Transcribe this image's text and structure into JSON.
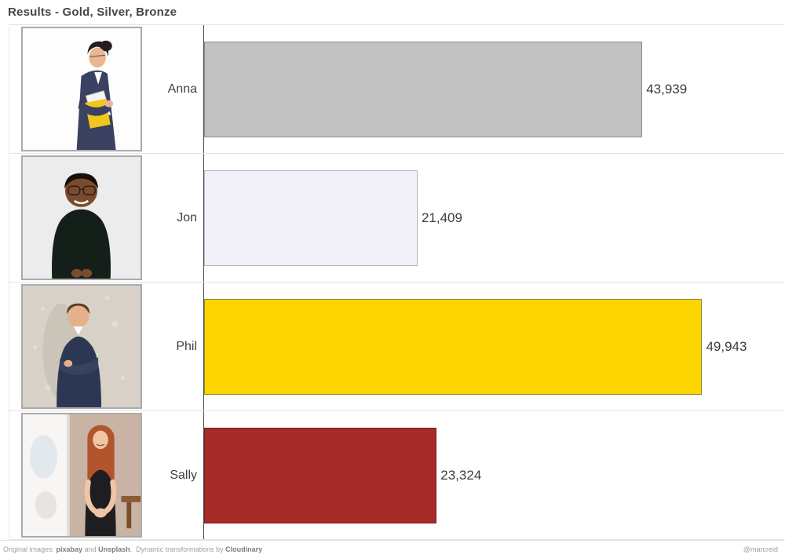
{
  "title": "Results - Gold, Silver, Bronze",
  "chart_data": {
    "type": "bar",
    "orientation": "horizontal",
    "title": "Results - Gold, Silver, Bronze",
    "categories": [
      "Anna",
      "Jon",
      "Phil",
      "Sally"
    ],
    "values": [
      43939,
      21409,
      49943,
      23324
    ],
    "value_labels": [
      "43,939",
      "21,409",
      "49,943",
      "23,324"
    ],
    "bar_colors": [
      "#c1c1c1",
      "#f2f1fa",
      "#fdd501",
      "#a72b28"
    ],
    "bar_border_colors": [
      "#8c8c8c",
      "#b2b2bf",
      "#90892f",
      "#731f1d"
    ],
    "color_meaning": [
      "silver",
      "plain",
      "gold",
      "bronze"
    ],
    "xlim": [
      0,
      58172
    ],
    "grid": false,
    "legend": false,
    "row_photos": [
      "anna-photo",
      "jon-photo",
      "phil-photo",
      "sally-photo"
    ]
  },
  "footer": {
    "prefix": "Original images: ",
    "credit1": "pixabay",
    "mid1": " and ",
    "credit2": "Unsplash",
    "mid2": ".  Dynamic transformations by ",
    "credit3": "Cloudinary",
    "handle": "@marcreid"
  }
}
